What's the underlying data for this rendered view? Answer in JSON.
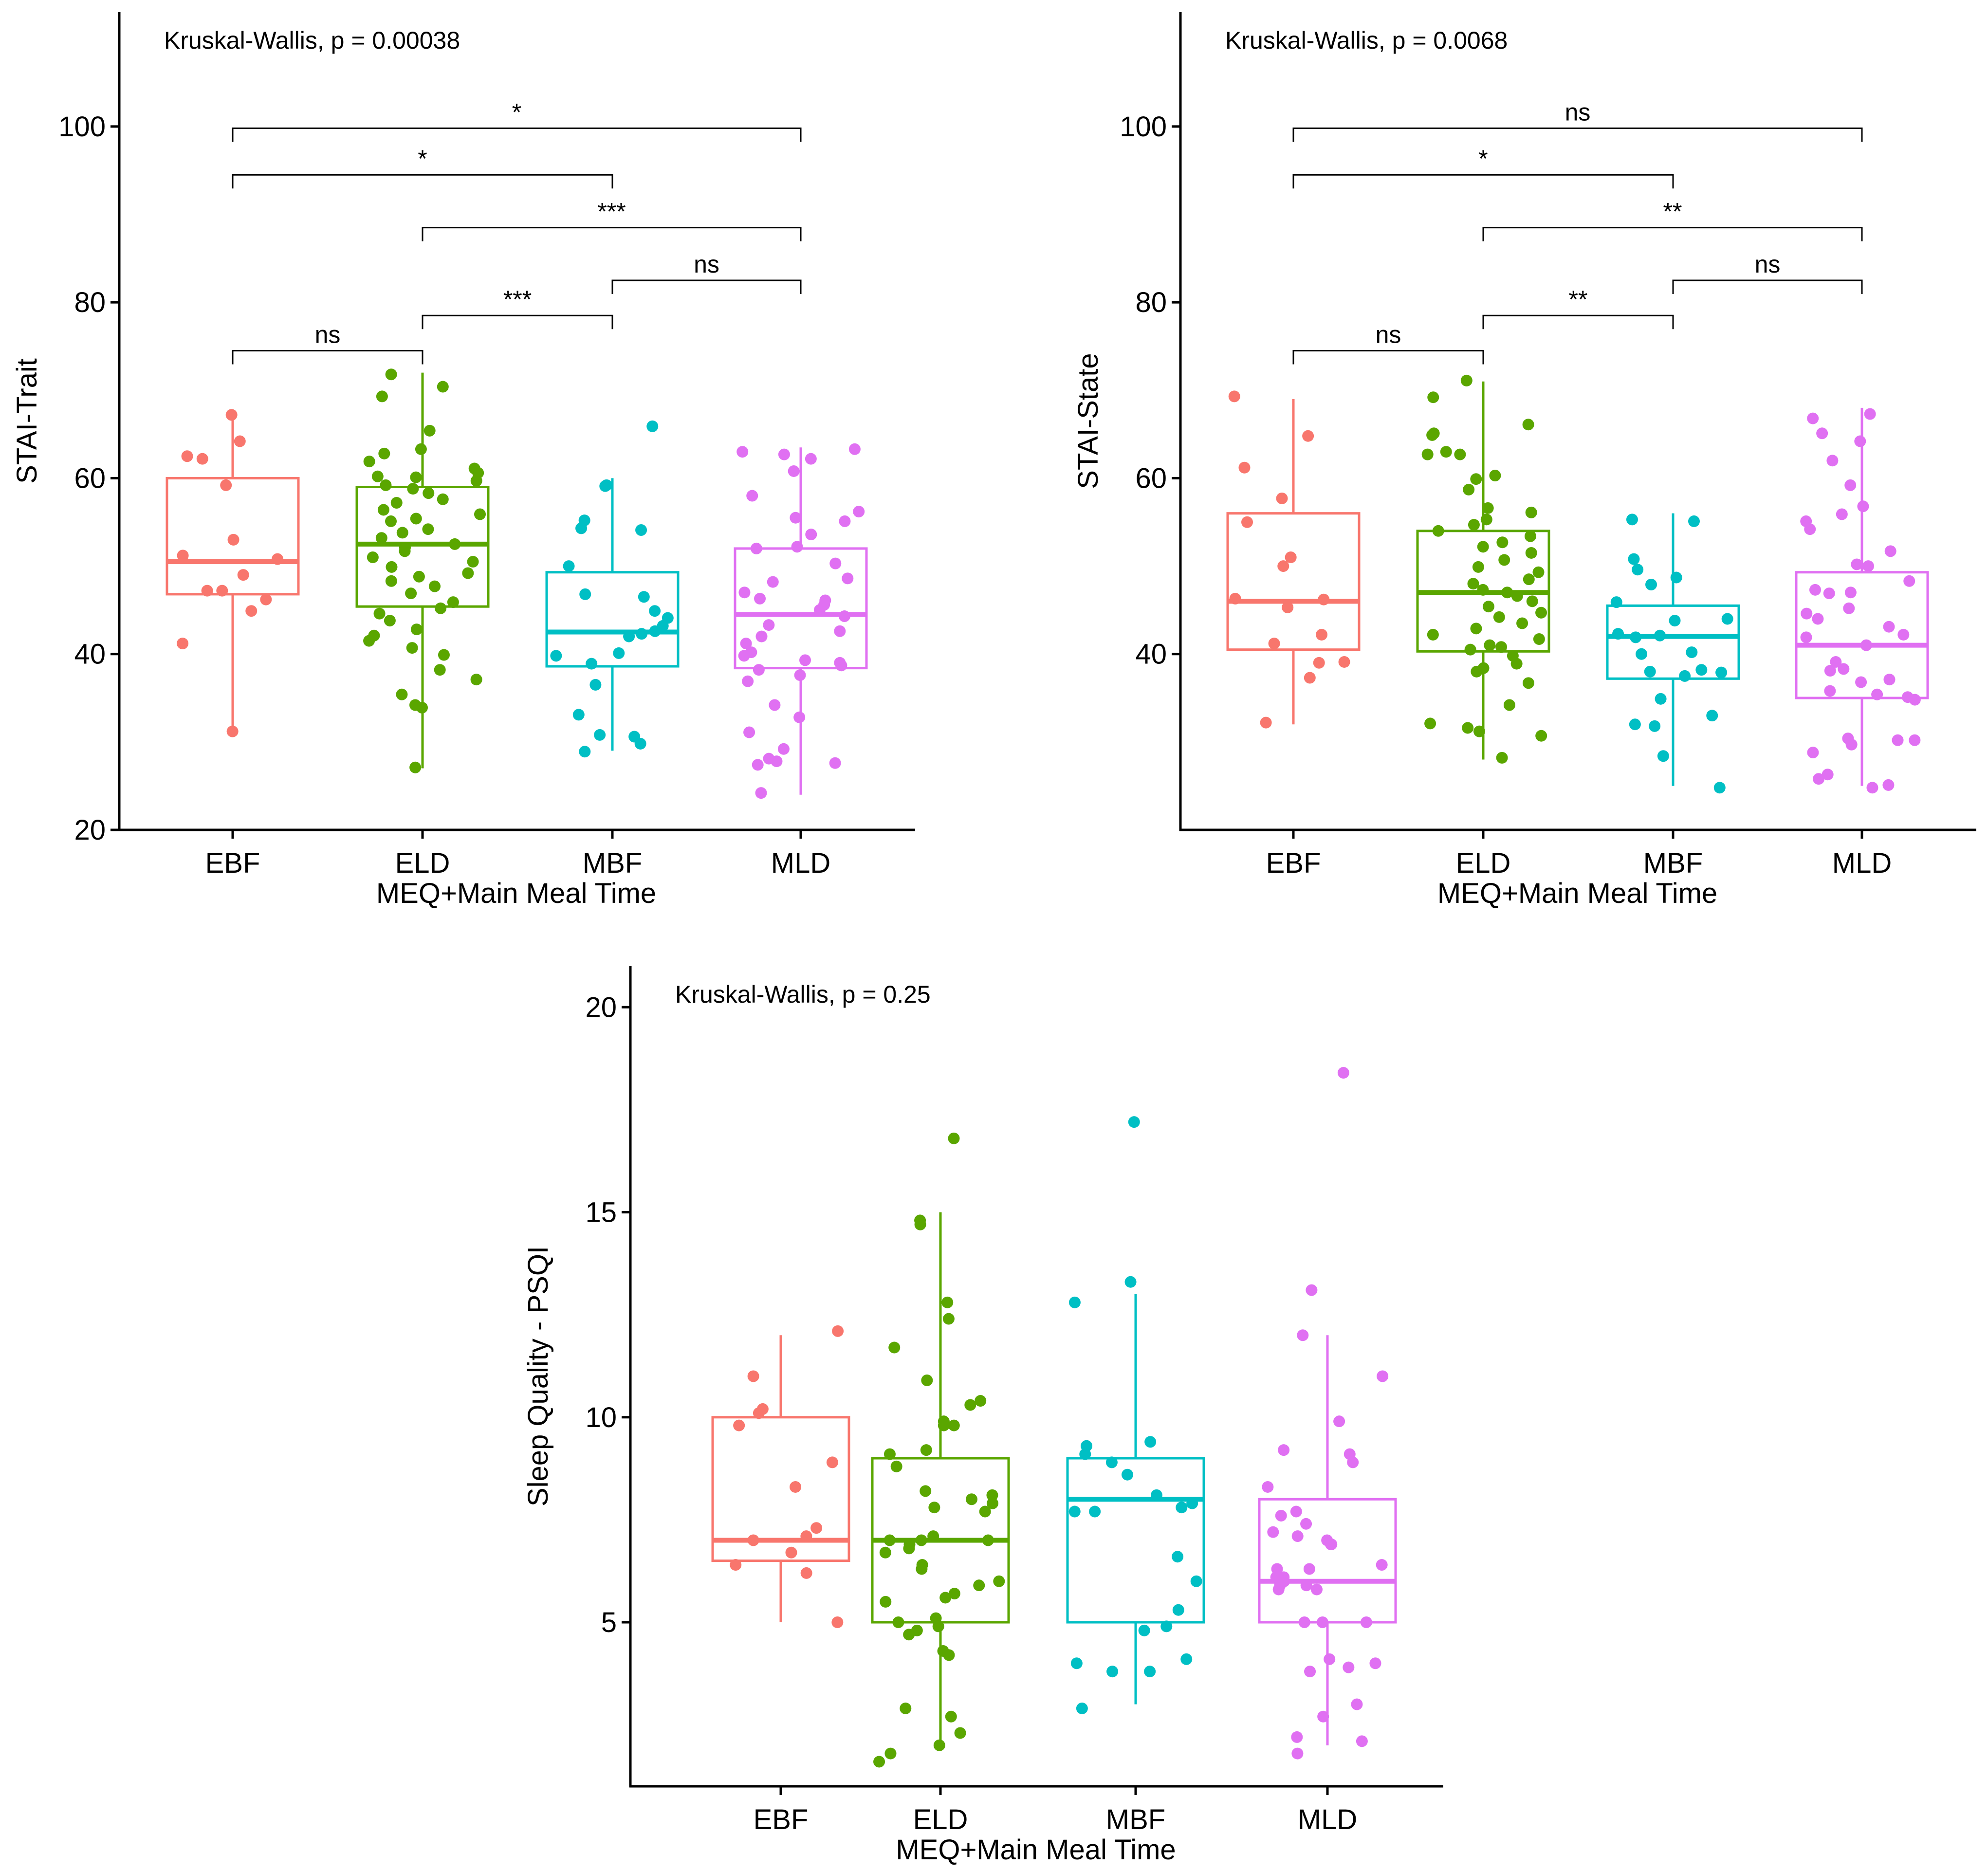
{
  "colors": {
    "EBF": "#F8766D",
    "ELD": "#5AA600",
    "MBF": "#00BFC4",
    "MLD": "#E070F2",
    "axis": "#000000"
  },
  "chart_data": [
    {
      "id": "stai-trait",
      "type": "box",
      "title": "",
      "test_label": "Kruskal-Wallis, p = 0.00038",
      "xlabel": "MEQ+Main Meal Time",
      "ylabel": "STAI-Trait",
      "ylim": [
        20,
        113
      ],
      "yticks": [
        20,
        40,
        60,
        80,
        100
      ],
      "categories": [
        "EBF",
        "ELD",
        "MBF",
        "MLD"
      ],
      "boxes": [
        {
          "group": "EBF",
          "min": 31,
          "q1": 46.8,
          "median": 50.5,
          "q3": 60,
          "max": 67,
          "points": [
            67.2,
            64.2,
            62.5,
            62.2,
            59.2,
            53,
            51.2,
            50.8,
            49,
            47.2,
            47.2,
            46.2,
            44.9,
            41.2,
            31.2
          ]
        },
        {
          "group": "ELD",
          "min": 27,
          "q1": 45.4,
          "median": 52.5,
          "q3": 59,
          "max": 72,
          "points": [
            71.8,
            70.4,
            69.3,
            65.4,
            63.3,
            62.8,
            61.9,
            61.1,
            60.6,
            60.2,
            60.1,
            59.7,
            59.2,
            58.8,
            58.3,
            57.6,
            57.2,
            56.4,
            55.9,
            55.4,
            55.1,
            54.2,
            53.8,
            53.2,
            52.5,
            52.1,
            51.7,
            51.0,
            50.5,
            49.9,
            49.2,
            48.8,
            48.3,
            47.7,
            46.9,
            45.9,
            45.2,
            44.6,
            43.8,
            42.8,
            42.1,
            41.5,
            40.7,
            39.9,
            38.2,
            37.1,
            35.4,
            34.2,
            33.9,
            27.1
          ]
        },
        {
          "group": "MBF",
          "min": 29,
          "q1": 38.6,
          "median": 42.5,
          "q3": 49.3,
          "max": 60,
          "points": [
            65.9,
            59.2,
            59.1,
            55.2,
            54.3,
            54.1,
            50,
            46.8,
            46.5,
            44.9,
            44.1,
            43.2,
            42.6,
            42.3,
            42.0,
            40.1,
            39.8,
            38.9,
            36.5,
            33.1,
            30.8,
            30.6,
            29.8,
            28.9
          ]
        },
        {
          "group": "MLD",
          "min": 24,
          "q1": 38.4,
          "median": 44.5,
          "q3": 52,
          "max": 63.5,
          "points": [
            63.3,
            63.0,
            62.7,
            62.2,
            60.8,
            58.0,
            56.2,
            55.5,
            55.1,
            53.6,
            52.2,
            52.0,
            50.3,
            48.6,
            48.2,
            47.0,
            46.3,
            46.1,
            45.6,
            45.0,
            44.3,
            43.3,
            42.6,
            42.0,
            41.2,
            40.2,
            39.8,
            39.3,
            39.0,
            38.7,
            38.2,
            37.6,
            36.9,
            34.2,
            32.8,
            31.1,
            29.2,
            28.1,
            27.8,
            27.6,
            27.4,
            24.2
          ]
        }
      ],
      "comparisons": [
        {
          "from": "EBF",
          "to": "ELD",
          "label": "ns",
          "y": 74.5
        },
        {
          "from": "ELD",
          "to": "MBF",
          "label": "***",
          "y": 78.5
        },
        {
          "from": "MBF",
          "to": "MLD",
          "label": "ns",
          "y": 82.5
        },
        {
          "from": "ELD",
          "to": "MLD",
          "label": "***",
          "y": 88.5
        },
        {
          "from": "EBF",
          "to": "MBF",
          "label": "*",
          "y": 94.5
        },
        {
          "from": "EBF",
          "to": "MLD",
          "label": "*",
          "y": 99.8
        }
      ]
    },
    {
      "id": "stai-state",
      "type": "box",
      "title": "",
      "test_label": "Kruskal-Wallis, p = 0.0068",
      "xlabel": "MEQ+Main Meal Time",
      "ylabel": "STAI-State",
      "ylim": [
        20,
        113
      ],
      "yticks": [
        40,
        60,
        80,
        100
      ],
      "categories": [
        "EBF",
        "ELD",
        "MBF",
        "MLD"
      ],
      "boxes": [
        {
          "group": "EBF",
          "min": 32,
          "q1": 40.5,
          "median": 46,
          "q3": 56,
          "max": 69,
          "points": [
            69.3,
            64.8,
            61.2,
            57.7,
            55.0,
            51.0,
            50.0,
            46.3,
            46.2,
            45.3,
            42.2,
            41.2,
            39.1,
            39.0,
            37.3,
            32.2
          ]
        },
        {
          "group": "ELD",
          "min": 28,
          "q1": 40.3,
          "median": 47,
          "q3": 54,
          "max": 71,
          "points": [
            71.1,
            69.2,
            66.1,
            65.1,
            64.9,
            63.0,
            62.7,
            62.7,
            60.3,
            59.9,
            58.7,
            56.6,
            56.1,
            55.3,
            54.7,
            54.0,
            53.4,
            52.7,
            52.2,
            51.5,
            50.7,
            49.9,
            49.3,
            48.5,
            48.0,
            47.3,
            47.0,
            46.6,
            46.0,
            45.4,
            44.7,
            44.2,
            43.5,
            42.9,
            42.2,
            41.7,
            41.0,
            40.8,
            40.5,
            39.8,
            38.9,
            38.4,
            38.0,
            36.7,
            34.2,
            32.1,
            31.6,
            31.2,
            30.7,
            28.2
          ]
        },
        {
          "group": "MBF",
          "min": 25,
          "q1": 37.2,
          "median": 42,
          "q3": 45.5,
          "max": 56,
          "points": [
            55.3,
            55.1,
            50.8,
            49.6,
            48.7,
            47.9,
            45.9,
            44.0,
            43.8,
            42.3,
            42.1,
            41.9,
            40.2,
            40.0,
            38.2,
            38.0,
            37.9,
            37.5,
            34.9,
            33.0,
            32.0,
            31.8,
            28.4,
            24.8
          ]
        },
        {
          "group": "MLD",
          "min": 25,
          "q1": 35,
          "median": 41,
          "q3": 49.3,
          "max": 68,
          "points": [
            67.3,
            66.8,
            65.1,
            64.2,
            62.0,
            59.2,
            56.8,
            55.9,
            55.1,
            54.2,
            51.7,
            50.2,
            50.0,
            48.3,
            47.3,
            47.0,
            46.9,
            45.2,
            44.6,
            44.0,
            43.1,
            42.2,
            41.9,
            41.0,
            39.1,
            38.3,
            38.1,
            37.1,
            36.8,
            35.8,
            35.4,
            35.1,
            34.8,
            30.4,
            30.2,
            30.2,
            29.7,
            28.8,
            26.3,
            25.8,
            25.1,
            24.8
          ]
        }
      ],
      "comparisons": [
        {
          "from": "EBF",
          "to": "ELD",
          "label": "ns",
          "y": 74.5
        },
        {
          "from": "ELD",
          "to": "MBF",
          "label": "**",
          "y": 78.5
        },
        {
          "from": "MBF",
          "to": "MLD",
          "label": "ns",
          "y": 82.5
        },
        {
          "from": "ELD",
          "to": "MLD",
          "label": "**",
          "y": 88.5
        },
        {
          "from": "EBF",
          "to": "MBF",
          "label": "*",
          "y": 94.5
        },
        {
          "from": "EBF",
          "to": "MLD",
          "label": "ns",
          "y": 99.8
        }
      ]
    },
    {
      "id": "psqi",
      "type": "box",
      "title": "",
      "test_label": "Kruskal-Wallis, p = 0.25",
      "xlabel": "MEQ+Main Meal Time",
      "ylabel": "Sleep Quality - PSQI",
      "ylim": [
        1,
        21
      ],
      "yticks": [
        5,
        10,
        15,
        20
      ],
      "categories": [
        "EBF",
        "ELD",
        "MBF",
        "MLD"
      ],
      "boxes": [
        {
          "group": "EBF",
          "min": 5,
          "q1": 6.5,
          "median": 7,
          "q3": 10,
          "max": 12,
          "points": [
            12.1,
            11.0,
            10.2,
            10.1,
            9.8,
            8.9,
            8.3,
            7.3,
            7.1,
            7.0,
            6.7,
            6.4,
            6.2,
            5.0
          ]
        },
        {
          "group": "ELD",
          "min": 2,
          "q1": 5,
          "median": 7,
          "q3": 9,
          "max": 15,
          "points": [
            16.8,
            14.8,
            14.7,
            12.8,
            12.4,
            11.7,
            10.9,
            10.4,
            10.3,
            9.9,
            9.8,
            9.8,
            9.2,
            9.1,
            8.8,
            8.2,
            8.1,
            8.0,
            7.9,
            7.8,
            7.7,
            7.1,
            7.0,
            7.0,
            7.0,
            6.9,
            6.8,
            6.7,
            6.4,
            6.3,
            6.0,
            5.9,
            5.7,
            5.6,
            5.5,
            5.1,
            5.0,
            4.9,
            4.8,
            4.7,
            4.3,
            4.2,
            2.9,
            2.7,
            2.3,
            2.0,
            1.8,
            1.6
          ]
        },
        {
          "group": "MBF",
          "min": 3,
          "q1": 5,
          "median": 8,
          "q3": 9,
          "max": 13,
          "points": [
            17.2,
            13.3,
            12.8,
            9.4,
            9.3,
            9.1,
            8.9,
            8.6,
            8.1,
            7.9,
            7.8,
            7.7,
            7.7,
            6.6,
            6.0,
            5.3,
            4.9,
            4.8,
            4.1,
            4.0,
            3.8,
            3.8,
            2.9
          ]
        },
        {
          "group": "MLD",
          "min": 2,
          "q1": 5,
          "median": 6,
          "q3": 8,
          "max": 12,
          "points": [
            18.4,
            13.1,
            12.0,
            11.0,
            9.9,
            9.2,
            9.1,
            8.9,
            8.3,
            7.7,
            7.6,
            7.4,
            7.2,
            7.1,
            7.0,
            6.9,
            6.9,
            6.4,
            6.3,
            6.3,
            6.1,
            6.1,
            6.0,
            5.9,
            5.9,
            5.9,
            5.8,
            5.8,
            5.0,
            5.0,
            5.0,
            4.1,
            4.0,
            3.9,
            3.8,
            3.0,
            2.7,
            2.2,
            2.1,
            1.8
          ]
        }
      ],
      "comparisons": []
    }
  ]
}
